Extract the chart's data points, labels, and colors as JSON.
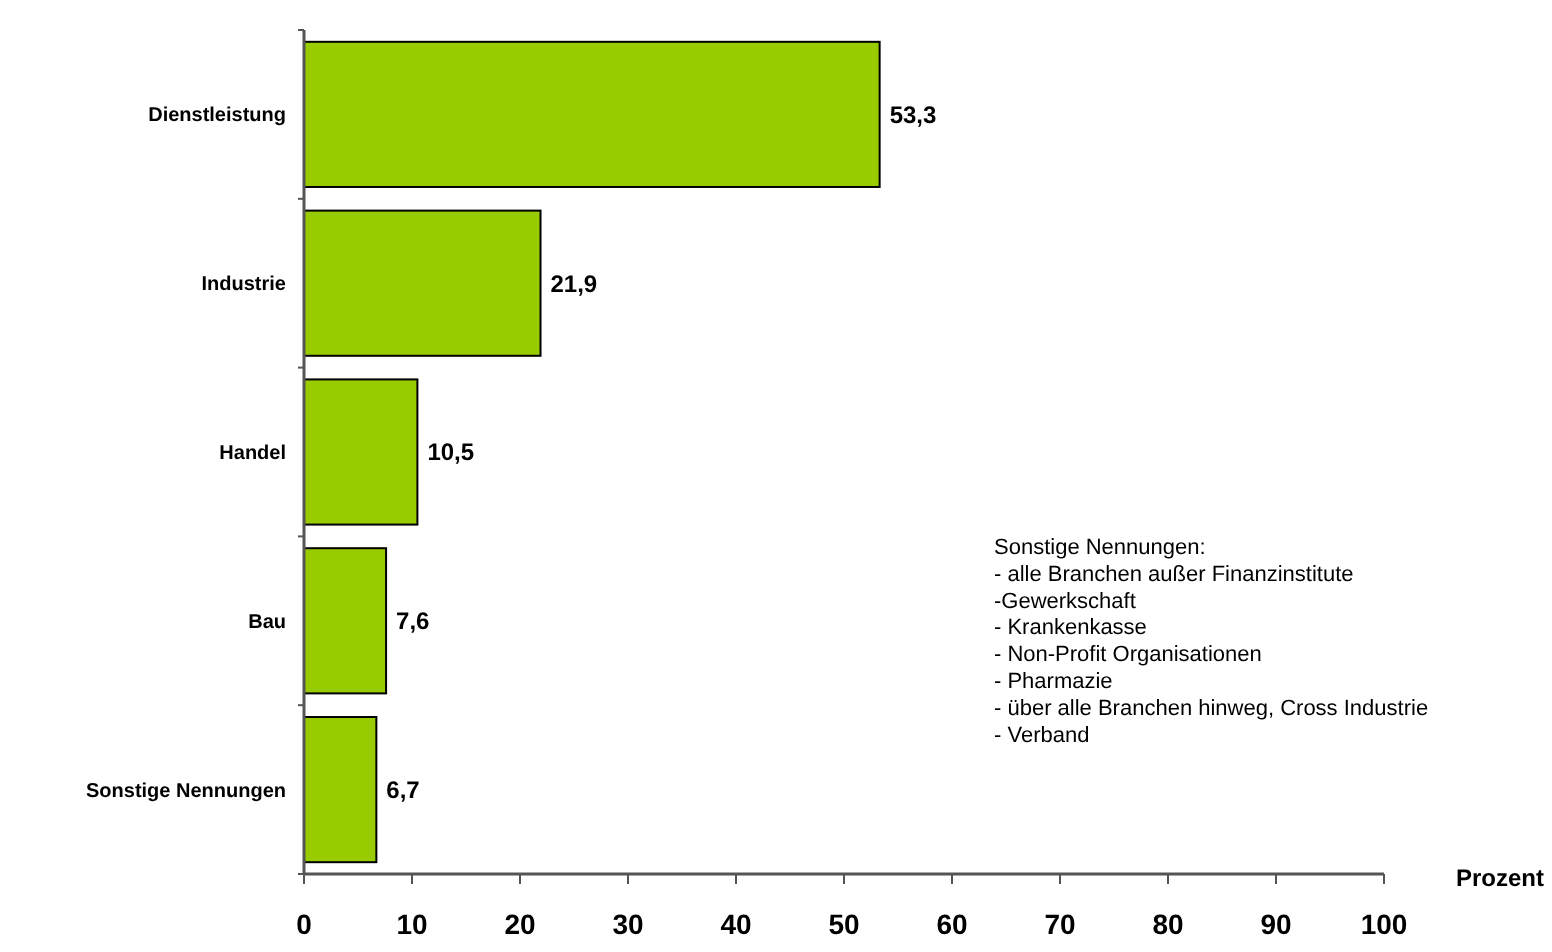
{
  "chart_data": {
    "type": "bar",
    "orientation": "horizontal",
    "categories": [
      "Dienstleistung",
      "Industrie",
      "Handel",
      "Bau",
      "Sonstige Nennungen"
    ],
    "values": [
      53.3,
      21.9,
      10.5,
      7.6,
      6.7
    ],
    "color": "#99cc00",
    "value_labels": [
      "53,3",
      "21,9",
      "10,5",
      "7,6",
      "6,7"
    ],
    "xlim": [
      0,
      100
    ],
    "xticks": [
      0,
      10,
      20,
      30,
      40,
      50,
      60,
      70,
      80,
      90,
      100
    ],
    "xlabel": "Prozent",
    "grid": false,
    "annotations": [
      "Sonstige Nennungen:",
      "- alle Branchen außer Finanzinstitute",
      "-Gewerkschaft",
      "- Krankenkasse",
      "- Non-Profit Organisationen",
      "- Pharmazie",
      "- über alle Branchen hinweg, Cross Industrie",
      "- Verband"
    ]
  }
}
